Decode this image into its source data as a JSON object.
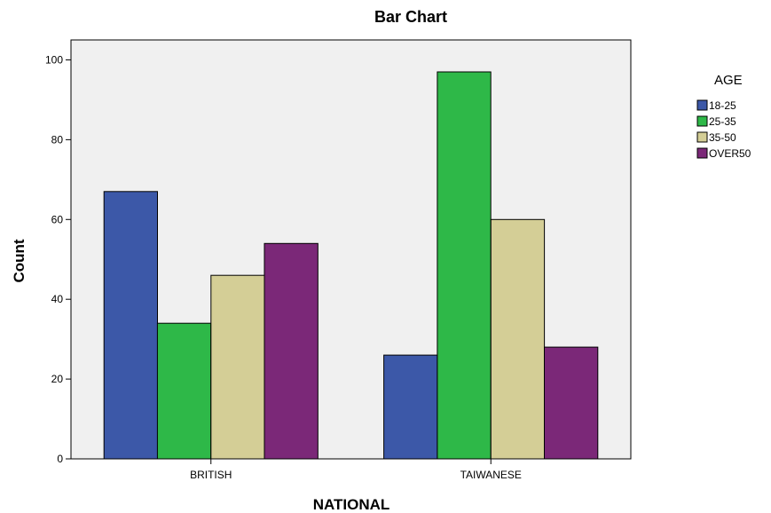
{
  "chart_data": {
    "type": "bar",
    "title": "Bar Chart",
    "xlabel": "NATIONAL",
    "ylabel": "Count",
    "categories": [
      "BRITISH",
      "TAIWANESE"
    ],
    "ylim": [
      0,
      105
    ],
    "yticks": [
      0,
      20,
      40,
      60,
      80,
      100
    ],
    "grid": false,
    "legend": {
      "title": "AGE",
      "placement": "right"
    },
    "series": [
      {
        "name": "18-25",
        "color": "#3C58A8",
        "values": [
          67,
          26
        ]
      },
      {
        "name": "25-35",
        "color": "#2EB848",
        "values": [
          34,
          97
        ]
      },
      {
        "name": "35-50",
        "color": "#D4CE96",
        "values": [
          46,
          60
        ]
      },
      {
        "name": "OVER50",
        "color": "#7B2878",
        "values": [
          54,
          28
        ]
      }
    ]
  }
}
